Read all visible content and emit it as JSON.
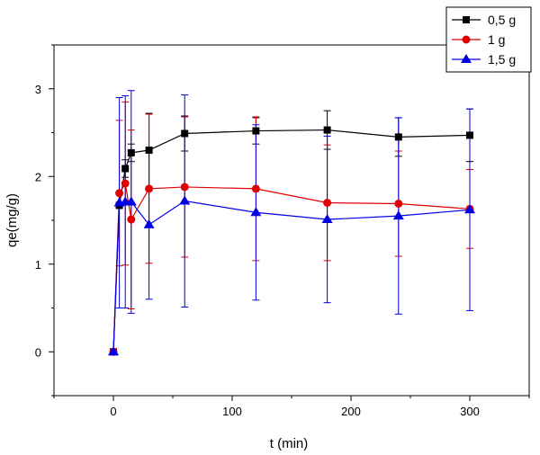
{
  "chart_data": {
    "type": "line",
    "title": "",
    "xlabel": "t (min)",
    "ylabel": "qe(mg/g)",
    "xlim": [
      -50,
      350
    ],
    "ylim": [
      -0.5,
      3.5
    ],
    "xticks": [
      0,
      100,
      200,
      300
    ],
    "xtick_labels": [
      "0",
      "100",
      "200",
      "300"
    ],
    "yticks": [
      0,
      1,
      2,
      3
    ],
    "ytick_labels": [
      "0",
      "1",
      "2",
      "3"
    ],
    "grid": false,
    "legend_position": "top-right",
    "series": [
      {
        "name": "0,5 g",
        "color": "#000000",
        "marker": "square",
        "x": [
          0,
          5,
          10,
          15,
          30,
          60,
          120,
          180,
          240,
          300
        ],
        "y": [
          0,
          1.67,
          2.09,
          2.27,
          2.3,
          2.49,
          2.52,
          2.53,
          2.45,
          2.47
        ],
        "yerr": [
          0,
          0.03,
          0.1,
          0.1,
          0.42,
          0.2,
          0.15,
          0.22,
          0.22,
          0.3
        ]
      },
      {
        "name": "1 g",
        "color": "#e00000",
        "marker": "circle",
        "x": [
          0,
          5,
          10,
          15,
          30,
          60,
          120,
          180,
          240,
          300
        ],
        "y": [
          0,
          1.81,
          1.92,
          1.51,
          1.86,
          1.88,
          1.86,
          1.7,
          1.69,
          1.63
        ],
        "yerr": [
          0,
          0.83,
          0.93,
          1.02,
          0.85,
          0.8,
          0.82,
          0.66,
          0.6,
          0.45
        ]
      },
      {
        "name": "1,5 g",
        "color": "#0000e6",
        "marker": "triangle",
        "x": [
          0,
          5,
          10,
          15,
          30,
          60,
          120,
          180,
          240,
          300
        ],
        "y": [
          0,
          1.7,
          1.71,
          1.71,
          1.45,
          1.72,
          1.59,
          1.51,
          1.55,
          1.62
        ],
        "yerr": [
          0,
          1.2,
          1.21,
          1.27,
          0.85,
          1.21,
          1.0,
          0.95,
          1.12,
          1.15
        ]
      }
    ]
  }
}
